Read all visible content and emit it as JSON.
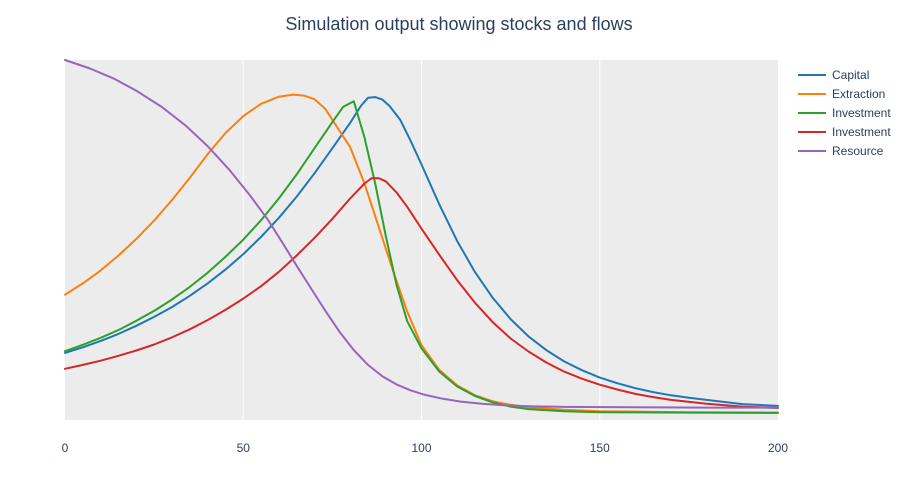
{
  "chart_data": {
    "type": "line",
    "title": "Simulation output showing stocks and flows",
    "xlabel": "",
    "ylabel": "",
    "xlim": [
      0,
      200
    ],
    "ylim": [
      0,
      1
    ],
    "x_ticks": [
      0,
      50,
      100,
      150,
      200
    ],
    "y_ticks_visible": false,
    "grid": "vertical",
    "plot_background": "#ececec",
    "legend_placement": "top-right",
    "series": [
      {
        "name": "Capital",
        "color": "#1f77b4",
        "points": [
          [
            0,
            0.17
          ],
          [
            5,
            0.186
          ],
          [
            10,
            0.204
          ],
          [
            15,
            0.224
          ],
          [
            20,
            0.247
          ],
          [
            25,
            0.272
          ],
          [
            30,
            0.3
          ],
          [
            35,
            0.332
          ],
          [
            40,
            0.367
          ],
          [
            45,
            0.406
          ],
          [
            50,
            0.45
          ],
          [
            55,
            0.499
          ],
          [
            60,
            0.553
          ],
          [
            65,
            0.613
          ],
          [
            70,
            0.679
          ],
          [
            75,
            0.75
          ],
          [
            80,
            0.822
          ],
          [
            83,
            0.87
          ],
          [
            85,
            0.893
          ],
          [
            87,
            0.895
          ],
          [
            89,
            0.888
          ],
          [
            91,
            0.87
          ],
          [
            94,
            0.831
          ],
          [
            97,
            0.77
          ],
          [
            100,
            0.704
          ],
          [
            105,
            0.591
          ],
          [
            110,
            0.487
          ],
          [
            115,
            0.399
          ],
          [
            120,
            0.326
          ],
          [
            125,
            0.266
          ],
          [
            130,
            0.217
          ],
          [
            135,
            0.178
          ],
          [
            140,
            0.146
          ],
          [
            145,
            0.121
          ],
          [
            150,
            0.1
          ],
          [
            155,
            0.084
          ],
          [
            160,
            0.07
          ],
          [
            165,
            0.059
          ],
          [
            170,
            0.05
          ],
          [
            175,
            0.043
          ],
          [
            180,
            0.037
          ],
          [
            190,
            0.025
          ],
          [
            200,
            0.02
          ]
        ]
      },
      {
        "name": "Extraction",
        "color": "#ff7f0e",
        "points": [
          [
            0,
            0.335
          ],
          [
            5,
            0.367
          ],
          [
            10,
            0.404
          ],
          [
            15,
            0.446
          ],
          [
            20,
            0.493
          ],
          [
            25,
            0.545
          ],
          [
            30,
            0.603
          ],
          [
            35,
            0.666
          ],
          [
            40,
            0.733
          ],
          [
            45,
            0.793
          ],
          [
            50,
            0.841
          ],
          [
            55,
            0.876
          ],
          [
            60,
            0.896
          ],
          [
            64,
            0.902
          ],
          [
            67,
            0.899
          ],
          [
            70,
            0.889
          ],
          [
            73,
            0.862
          ],
          [
            76,
            0.815
          ],
          [
            80,
            0.753
          ],
          [
            84,
            0.65
          ],
          [
            88,
            0.527
          ],
          [
            92,
            0.403
          ],
          [
            96,
            0.287
          ],
          [
            100,
            0.192
          ],
          [
            105,
            0.122
          ],
          [
            110,
            0.078
          ],
          [
            115,
            0.05
          ],
          [
            120,
            0.033
          ],
          [
            125,
            0.023
          ],
          [
            130,
            0.016
          ],
          [
            140,
            0.009
          ],
          [
            150,
            0.005
          ],
          [
            175,
            0.002
          ],
          [
            200,
            0.001
          ]
        ]
      },
      {
        "name": "Investment",
        "color": "#2ca02c",
        "points": [
          [
            0,
            0.175
          ],
          [
            5,
            0.193
          ],
          [
            10,
            0.213
          ],
          [
            15,
            0.235
          ],
          [
            20,
            0.261
          ],
          [
            25,
            0.289
          ],
          [
            30,
            0.321
          ],
          [
            35,
            0.357
          ],
          [
            40,
            0.397
          ],
          [
            45,
            0.442
          ],
          [
            50,
            0.491
          ],
          [
            55,
            0.546
          ],
          [
            60,
            0.608
          ],
          [
            65,
            0.676
          ],
          [
            70,
            0.75
          ],
          [
            75,
            0.824
          ],
          [
            78,
            0.867
          ],
          [
            81,
            0.883
          ],
          [
            84,
            0.78
          ],
          [
            87,
            0.65
          ],
          [
            90,
            0.5
          ],
          [
            93,
            0.363
          ],
          [
            96,
            0.26
          ],
          [
            100,
            0.183
          ],
          [
            105,
            0.117
          ],
          [
            110,
            0.075
          ],
          [
            115,
            0.048
          ],
          [
            120,
            0.03
          ],
          [
            125,
            0.018
          ],
          [
            130,
            0.011
          ],
          [
            140,
            0.005
          ],
          [
            150,
            0.002
          ],
          [
            175,
            0.001
          ],
          [
            200,
            0.0
          ]
        ]
      },
      {
        "name": "Investment",
        "color": "#d62728",
        "points": [
          [
            0,
            0.125
          ],
          [
            5,
            0.136
          ],
          [
            10,
            0.148
          ],
          [
            15,
            0.162
          ],
          [
            20,
            0.177
          ],
          [
            25,
            0.194
          ],
          [
            30,
            0.214
          ],
          [
            35,
            0.237
          ],
          [
            40,
            0.263
          ],
          [
            45,
            0.292
          ],
          [
            50,
            0.324
          ],
          [
            55,
            0.359
          ],
          [
            60,
            0.4
          ],
          [
            65,
            0.446
          ],
          [
            70,
            0.496
          ],
          [
            75,
            0.55
          ],
          [
            80,
            0.608
          ],
          [
            84,
            0.65
          ],
          [
            86,
            0.665
          ],
          [
            88,
            0.665
          ],
          [
            90,
            0.656
          ],
          [
            93,
            0.625
          ],
          [
            96,
            0.584
          ],
          [
            100,
            0.522
          ],
          [
            105,
            0.448
          ],
          [
            110,
            0.376
          ],
          [
            115,
            0.312
          ],
          [
            120,
            0.257
          ],
          [
            125,
            0.211
          ],
          [
            130,
            0.174
          ],
          [
            135,
            0.143
          ],
          [
            140,
            0.117
          ],
          [
            145,
            0.097
          ],
          [
            150,
            0.08
          ],
          [
            155,
            0.066
          ],
          [
            160,
            0.054
          ],
          [
            165,
            0.045
          ],
          [
            170,
            0.037
          ],
          [
            180,
            0.026
          ],
          [
            190,
            0.018
          ],
          [
            200,
            0.014
          ]
        ]
      },
      {
        "name": "Resource",
        "color": "#9467bd",
        "points": [
          [
            0,
            1.0
          ],
          [
            7,
            0.976
          ],
          [
            14,
            0.946
          ],
          [
            20,
            0.913
          ],
          [
            27,
            0.868
          ],
          [
            34,
            0.813
          ],
          [
            40,
            0.756
          ],
          [
            46,
            0.69
          ],
          [
            52,
            0.615
          ],
          [
            57,
            0.546
          ],
          [
            61,
            0.482
          ],
          [
            65,
            0.417
          ],
          [
            69,
            0.353
          ],
          [
            73,
            0.29
          ],
          [
            77,
            0.23
          ],
          [
            81,
            0.178
          ],
          [
            85,
            0.136
          ],
          [
            89,
            0.104
          ],
          [
            93,
            0.081
          ],
          [
            97,
            0.064
          ],
          [
            101,
            0.051
          ],
          [
            106,
            0.04
          ],
          [
            111,
            0.032
          ],
          [
            117,
            0.026
          ],
          [
            123,
            0.022
          ],
          [
            130,
            0.019
          ],
          [
            140,
            0.017
          ],
          [
            160,
            0.016
          ],
          [
            180,
            0.015
          ],
          [
            200,
            0.015
          ]
        ]
      }
    ]
  }
}
